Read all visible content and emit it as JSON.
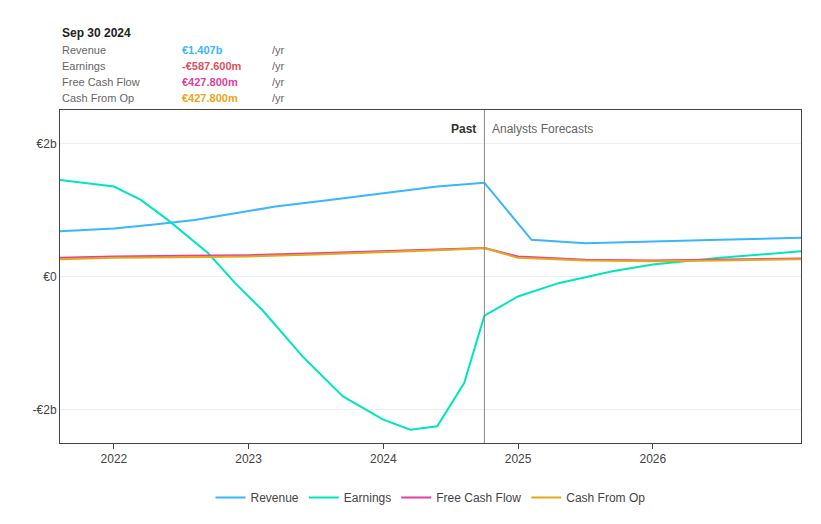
{
  "chart_data": {
    "type": "line",
    "xlim": [
      2021.6,
      2027.1
    ],
    "xticks": [
      2022,
      2023,
      2024,
      2025,
      2026
    ],
    "ylim": [
      -2500000000.0,
      2500000000.0
    ],
    "yticks": [
      {
        "value": 2000000000.0,
        "label": "€2b"
      },
      {
        "value": 0,
        "label": "€0"
      },
      {
        "value": -2000000000.0,
        "label": "-€2b"
      }
    ],
    "grid": true,
    "legend": "bottom",
    "series": [
      {
        "name": "Revenue",
        "color": "#38b6ff",
        "x": [
          2021.6,
          2022.0,
          2022.3,
          2022.6,
          2022.9,
          2023.2,
          2023.6,
          2024.0,
          2024.4,
          2024.75,
          2025.1,
          2025.5,
          2026.0,
          2026.5,
          2027.1
        ],
        "values": [
          680000000.0,
          720000000.0,
          780000000.0,
          850000000.0,
          950000000.0,
          1050000000.0,
          1150000000.0,
          1250000000.0,
          1350000000.0,
          1407000000.0,
          550000000.0,
          500000000.0,
          520000000.0,
          550000000.0,
          580000000.0
        ]
      },
      {
        "name": "Earnings",
        "color": "#00e5c0",
        "x": [
          2021.6,
          2022.0,
          2022.2,
          2022.4,
          2022.7,
          2022.9,
          2023.1,
          2023.4,
          2023.7,
          2024.0,
          2024.2,
          2024.4,
          2024.6,
          2024.75,
          2025.0,
          2025.3,
          2025.7,
          2026.0,
          2026.5,
          2027.1
        ],
        "values": [
          1450000000.0,
          1350000000.0,
          1150000000.0,
          850000000.0,
          350000000.0,
          -100000000.0,
          -500000000.0,
          -1200000000.0,
          -1800000000.0,
          -2150000000.0,
          -2300000000.0,
          -2250000000.0,
          -1600000000.0,
          -587600000.0,
          -300000000.0,
          -100000000.0,
          80000000.0,
          180000000.0,
          280000000.0,
          380000000.0
        ]
      },
      {
        "name": "Free Cash Flow",
        "color": "#e040a0",
        "x": [
          2021.6,
          2022.0,
          2022.5,
          2023.0,
          2023.5,
          2024.0,
          2024.5,
          2024.75,
          2025.0,
          2025.5,
          2026.0,
          2026.5,
          2027.1
        ],
        "values": [
          280000000.0,
          300000000.0,
          310000000.0,
          320000000.0,
          350000000.0,
          380000000.0,
          410000000.0,
          427800000.0,
          300000000.0,
          250000000.0,
          240000000.0,
          250000000.0,
          270000000.0
        ]
      },
      {
        "name": "Cash From Op",
        "color": "#e6a817",
        "x": [
          2021.6,
          2022.0,
          2022.5,
          2023.0,
          2023.5,
          2024.0,
          2024.5,
          2024.75,
          2025.0,
          2025.5,
          2026.0,
          2026.5,
          2027.1
        ],
        "values": [
          260000000.0,
          280000000.0,
          290000000.0,
          300000000.0,
          330000000.0,
          360000000.0,
          400000000.0,
          427800000.0,
          280000000.0,
          240000000.0,
          230000000.0,
          240000000.0,
          260000000.0
        ]
      }
    ],
    "annotations": [
      {
        "text": "Past",
        "x": 2024.75
      },
      {
        "text": "Analysts Forecasts",
        "x": 2024.75
      }
    ],
    "tooltip": {
      "title": "Sep 30 2024",
      "rows": [
        {
          "label": "Revenue",
          "value": 1407000000,
          "value_label": "€1.407b",
          "suffix": "/yr",
          "color": "#38b6ff"
        },
        {
          "label": "Earnings",
          "value": -587600000,
          "value_label": "-€587.600m",
          "suffix": "/yr",
          "color": "#e05060"
        },
        {
          "label": "Free Cash Flow",
          "value": 427800000,
          "value_label": "€427.800m",
          "suffix": "/yr",
          "color": "#e040a0"
        },
        {
          "label": "Cash From Op",
          "value": 427800000,
          "value_label": "€427.800m",
          "suffix": "/yr",
          "color": "#e6a817"
        }
      ]
    }
  }
}
